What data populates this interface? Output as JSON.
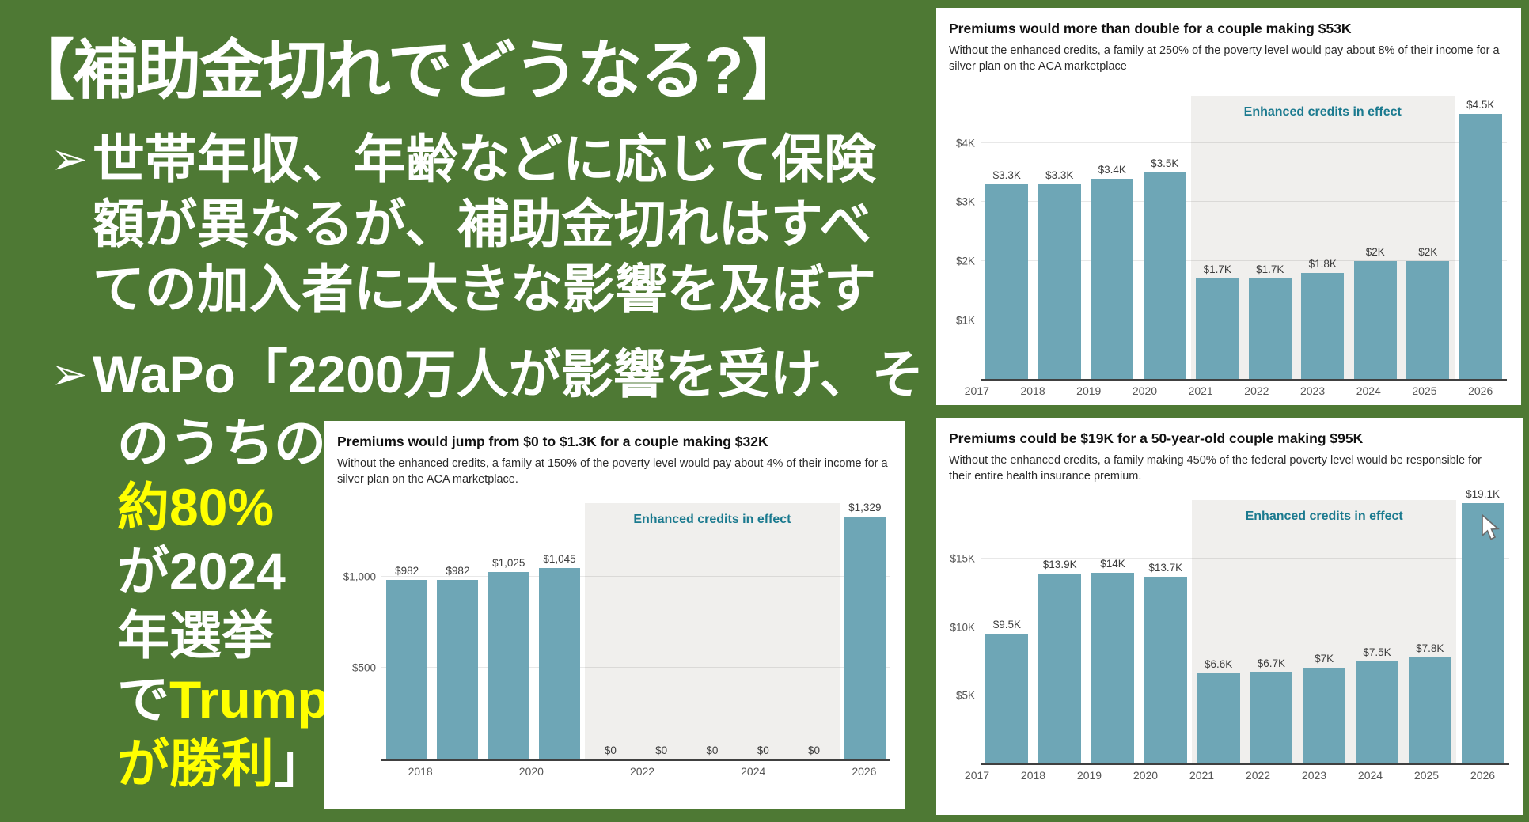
{
  "slide": {
    "background_color": "#4e7934",
    "text_color": "#ffffff",
    "highlight_color": "#ffff00",
    "title": "【補助金切れでどうなる?】",
    "bullet_marker": "➢",
    "bullet1_lines": [
      "世帯年収、年齢などに応じて保険",
      "額が異なるが、補助金切れはすべ",
      "ての加入者に大きな影響を及ぼす"
    ],
    "bullet2_line1": "WaPo「2200万人が影響を受け、そ",
    "bullet2_column": [
      {
        "segments": [
          {
            "text": "のうちの",
            "highlight": false
          }
        ]
      },
      {
        "segments": [
          {
            "text": "約80%",
            "highlight": true
          }
        ]
      },
      {
        "segments": [
          {
            "text": "が2024",
            "highlight": false
          }
        ]
      },
      {
        "segments": [
          {
            "text": "年選挙",
            "highlight": false
          }
        ]
      },
      {
        "segments": [
          {
            "text": "で",
            "highlight": false
          },
          {
            "text": "Trump",
            "highlight": true
          }
        ]
      },
      {
        "segments": [
          {
            "text": "が勝利",
            "highlight": true
          },
          {
            "text": "」",
            "highlight": false
          }
        ]
      }
    ]
  },
  "chart_style": {
    "bar_color": "#6ea6b6",
    "annotation_color": "#1b7a8f",
    "shade_color": "#f0efed",
    "card_background": "#ffffff"
  },
  "chart_data": [
    {
      "type": "bar",
      "title": "Premiums would more than double for a couple making $53K",
      "subtitle": "Without the enhanced credits, a family at 250% of the poverty level would pay about 8% of their income for a silver plan on the ACA marketplace",
      "categories": [
        "2017",
        "2018",
        "2019",
        "2020",
        "2021",
        "2022",
        "2023",
        "2024",
        "2025",
        "2026"
      ],
      "values": [
        3300,
        3300,
        3400,
        3500,
        1700,
        1700,
        1800,
        2000,
        2000,
        4500
      ],
      "bar_labels": [
        "$3.3K",
        "$3.3K",
        "$3.4K",
        "$3.5K",
        "$1.7K",
        "$1.7K",
        "$1.8K",
        "$2K",
        "$2K",
        "$4.5K"
      ],
      "xtick_labels": [
        "2017",
        "2018",
        "2019",
        "2020",
        "2021",
        "2022",
        "2023",
        "2024",
        "2025",
        "2026"
      ],
      "yticks": [
        1000,
        2000,
        3000,
        4000
      ],
      "ytick_labels": [
        "$1K",
        "$2K",
        "$3K",
        "$4K"
      ],
      "ylim": [
        0,
        4800
      ],
      "grid": true,
      "legend_position": "none",
      "annotation": "Enhanced credits in effect",
      "shaded_region": {
        "start_index": 4,
        "end_index": 8,
        "start_category": "2021",
        "end_category": "2025"
      }
    },
    {
      "type": "bar",
      "title": "Premiums would jump from $0 to $1.3K for a couple making $32K",
      "subtitle": "Without the enhanced credits, a family at 150% of the poverty level would pay about 4% of their income for a silver plan on the ACA marketplace.",
      "categories": [
        "2017",
        "2018",
        "2019",
        "2020",
        "2021",
        "2022",
        "2023",
        "2024",
        "2025",
        "2026"
      ],
      "values": [
        982,
        982,
        1025,
        1045,
        0,
        0,
        0,
        0,
        0,
        1329
      ],
      "bar_labels": [
        "$982",
        "$982",
        "$1,025",
        "$1,045",
        "$0",
        "$0",
        "$0",
        "$0",
        "$0",
        "$1,329"
      ],
      "xtick_labels": [
        "",
        "2018",
        "",
        "2020",
        "",
        "2022",
        "",
        "2024",
        "",
        "2026"
      ],
      "yticks": [
        500,
        1000
      ],
      "ytick_labels": [
        "$500",
        "$1,000"
      ],
      "ylim": [
        0,
        1400
      ],
      "grid": true,
      "legend_position": "none",
      "annotation": "Enhanced credits in effect",
      "shaded_region": {
        "start_index": 4,
        "end_index": 8,
        "start_category": "2021",
        "end_category": "2025"
      }
    },
    {
      "type": "bar",
      "title": "Premiums could be $19K for a 50-year-old couple making $95K",
      "subtitle": "Without the enhanced credits, a family making 450% of the federal poverty level would be responsible for their entire health insurance premium.",
      "categories": [
        "2017",
        "2018",
        "2019",
        "2020",
        "2021",
        "2022",
        "2023",
        "2024",
        "2025",
        "2026"
      ],
      "values": [
        9500,
        13900,
        14000,
        13700,
        6600,
        6700,
        7000,
        7500,
        7800,
        19100
      ],
      "bar_labels": [
        "$9.5K",
        "$13.9K",
        "$14K",
        "$13.7K",
        "$6.6K",
        "$6.7K",
        "$7K",
        "$7.5K",
        "$7.8K",
        "$19.1K"
      ],
      "xtick_labels": [
        "2017",
        "2018",
        "2019",
        "2020",
        "2021",
        "2022",
        "2023",
        "2024",
        "2025",
        "2026"
      ],
      "yticks": [
        5000,
        10000,
        15000
      ],
      "ytick_labels": [
        "$5K",
        "$10K",
        "$15K"
      ],
      "ylim": [
        0,
        19300
      ],
      "grid": true,
      "legend_position": "none",
      "annotation": "Enhanced credits in effect",
      "shaded_region": {
        "start_index": 4,
        "end_index": 8,
        "start_category": "2021",
        "end_category": "2025"
      }
    }
  ]
}
